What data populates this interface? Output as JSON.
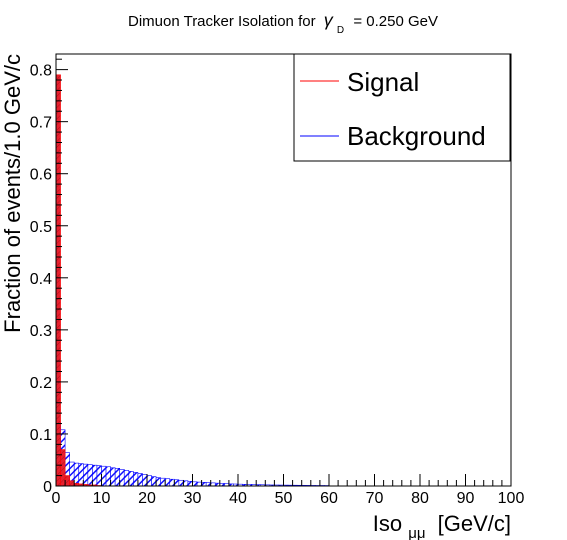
{
  "chart_data": {
    "type": "bar",
    "title_prefix": "Dimuon Tracker Isolation for",
    "title_symbol": "γ",
    "title_subscript": "D",
    "title_suffix": "= 0.250 GeV",
    "xlabel_main": "Iso",
    "xlabel_sub": "μμ",
    "xlabel_unit": "[GeV/c]",
    "ylabel": "Fraction of events/1.0 GeV/c",
    "xlim": [
      0,
      100
    ],
    "ylim": [
      0,
      0.83
    ],
    "xticks": [
      0,
      10,
      20,
      30,
      40,
      50,
      60,
      70,
      80,
      90,
      100
    ],
    "yticks": [
      0,
      0.1,
      0.2,
      0.3,
      0.4,
      0.5,
      0.6,
      0.7,
      0.8
    ],
    "bin_width": 1.0,
    "legend_position": "top-right",
    "series": [
      {
        "name": "Signal",
        "color": "#ff0000",
        "fill": "#e8202e",
        "style": "hatched",
        "values": [
          0.79,
          0.07,
          0.02,
          0.01,
          0.005,
          0.004,
          0.003,
          0.002,
          0.002,
          0.001
        ]
      },
      {
        "name": "Background",
        "color": "#0000ff",
        "fill": "#1a1aff",
        "style": "hatched",
        "values": [
          0.122,
          0.108,
          0.064,
          0.046,
          0.044,
          0.043,
          0.042,
          0.041,
          0.04,
          0.039,
          0.038,
          0.037,
          0.035,
          0.034,
          0.032,
          0.03,
          0.028,
          0.026,
          0.024,
          0.022,
          0.02,
          0.018,
          0.016,
          0.015,
          0.014,
          0.013,
          0.012,
          0.011,
          0.01,
          0.009,
          0.008,
          0.0075,
          0.007,
          0.0065,
          0.006,
          0.0055,
          0.005,
          0.0045,
          0.004,
          0.0038,
          0.0035,
          0.0032,
          0.003,
          0.0028,
          0.0026,
          0.0024,
          0.0022,
          0.002,
          0.0019,
          0.0018,
          0.0017,
          0.0016,
          0.0015,
          0.0014,
          0.0013,
          0.0012,
          0.0011,
          0.001,
          0.001,
          0.0009
        ]
      }
    ]
  }
}
